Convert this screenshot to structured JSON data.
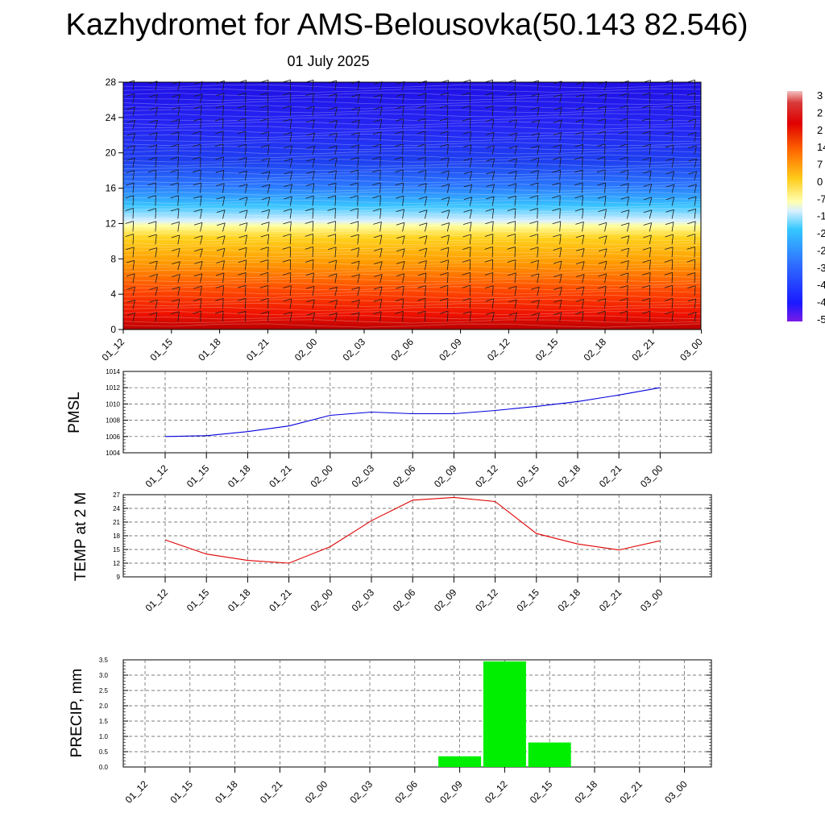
{
  "header": {
    "title": "Kazhydromet for AMS-Belousovka(50.143 82.546)",
    "date": "01 July 2025"
  },
  "time_labels": [
    "01_12",
    "01_15",
    "01_18",
    "01_21",
    "02_00",
    "02_03",
    "02_06",
    "02_09",
    "02_12",
    "02_15",
    "02_18",
    "02_21",
    "03_00"
  ],
  "chart_data": [
    {
      "type": "heatmap",
      "title": "",
      "xlabel": "",
      "ylabel": "",
      "y_ticks": [
        0,
        4,
        8,
        12,
        16,
        20,
        24,
        28
      ],
      "ylim": [
        0,
        28
      ],
      "note_shading": "temperature contours with wind barbs; warm near 0, cold near 28",
      "colorbar_labels": [
        "3",
        "2",
        "2",
        "14",
        "7",
        "0",
        "-7",
        "-1",
        "-2",
        "-2",
        "-3",
        "-4",
        "-4",
        "-5"
      ],
      "colors": {
        "hot": "#cc0000",
        "mid": "#ffff66",
        "cold": "#1a1aff",
        "top": "#2a00d6"
      }
    },
    {
      "type": "line",
      "ylabel": "PMSL",
      "y_ticks": [
        "1004",
        "1006",
        "1008",
        "1010",
        "1012",
        "1014"
      ],
      "ylim": [
        1004,
        1014
      ],
      "series": [
        {
          "values": [
            1006.0,
            1006.1,
            1006.6,
            1007.3,
            1008.6,
            1009.0,
            1008.8,
            1008.8,
            1009.2,
            1009.7,
            1010.3,
            1011.1,
            1012.0
          ]
        }
      ],
      "color": "#0000dd"
    },
    {
      "type": "line",
      "ylabel": "TEMP at 2 M",
      "y_ticks": [
        "9",
        "12",
        "15",
        "18",
        "21",
        "24",
        "27"
      ],
      "ylim": [
        9,
        27
      ],
      "series": [
        {
          "values": [
            17.1,
            14.0,
            12.6,
            12.0,
            15.6,
            21.3,
            25.8,
            26.4,
            25.5,
            18.5,
            16.2,
            14.9,
            16.9
          ]
        }
      ],
      "color": "#e00000"
    },
    {
      "type": "bar",
      "ylabel": "PRECIP, mm",
      "y_ticks": [
        "0.0",
        "0.5",
        "1.0",
        "1.5",
        "2.0",
        "2.5",
        "3.0",
        "3.5"
      ],
      "ylim": [
        0,
        3.5
      ],
      "values": [
        0,
        0,
        0,
        0,
        0,
        0,
        0,
        0.35,
        3.45,
        0.8,
        0,
        0,
        0
      ],
      "color": "#00ee00"
    }
  ]
}
